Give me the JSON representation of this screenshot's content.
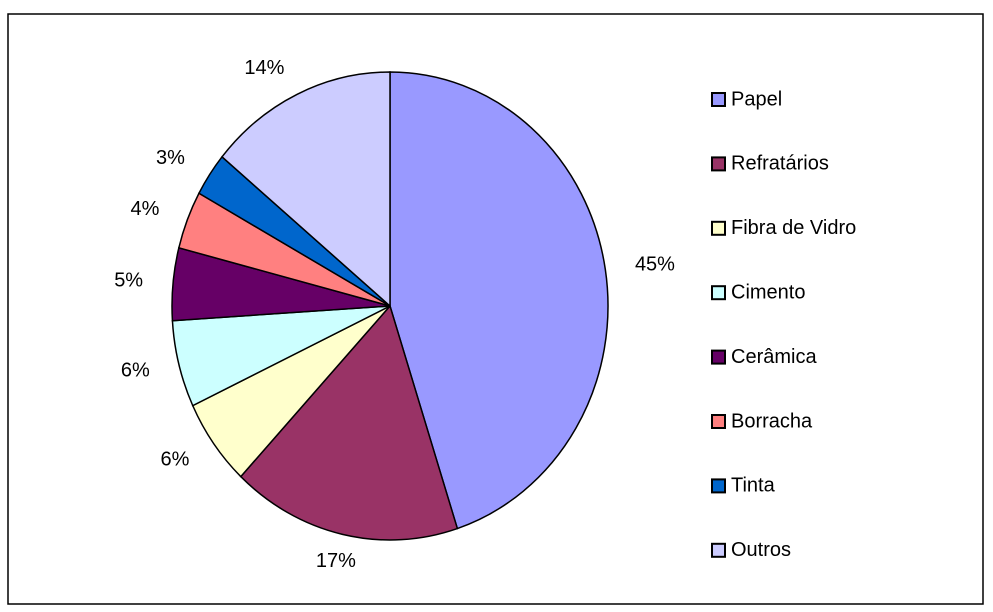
{
  "chart_data": {
    "type": "pie",
    "categories": [
      "Papel",
      "Refratários",
      "Fibra de Vidro",
      "Cimento",
      "Cerâmica",
      "Borracha",
      "Tinta",
      "Outros"
    ],
    "values": [
      45,
      17,
      6,
      6,
      5,
      4,
      3,
      14
    ],
    "value_labels": [
      "45%",
      "17%",
      "6%",
      "6%",
      "5%",
      "4%",
      "3%",
      "14%"
    ],
    "colors": [
      "#9999ff",
      "#993366",
      "#ffffcc",
      "#ccffff",
      "#660066",
      "#ff8080",
      "#0066cc",
      "#ccccff"
    ],
    "legend": "right"
  }
}
